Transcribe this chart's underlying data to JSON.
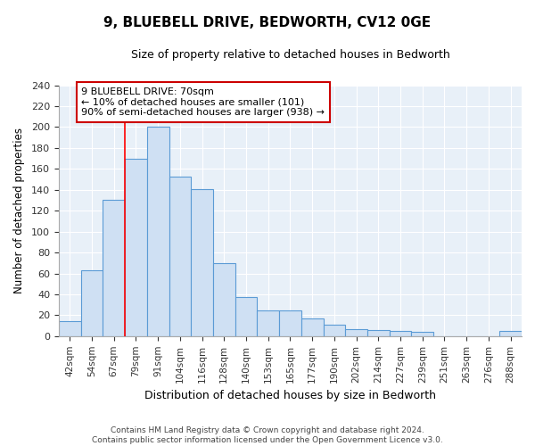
{
  "title": "9, BLUEBELL DRIVE, BEDWORTH, CV12 0GE",
  "subtitle": "Size of property relative to detached houses in Bedworth",
  "xlabel": "Distribution of detached houses by size in Bedworth",
  "ylabel": "Number of detached properties",
  "bar_labels": [
    "42sqm",
    "54sqm",
    "67sqm",
    "79sqm",
    "91sqm",
    "104sqm",
    "116sqm",
    "128sqm",
    "140sqm",
    "153sqm",
    "165sqm",
    "177sqm",
    "190sqm",
    "202sqm",
    "214sqm",
    "227sqm",
    "239sqm",
    "251sqm",
    "263sqm",
    "276sqm",
    "288sqm"
  ],
  "bar_values": [
    14,
    63,
    130,
    170,
    200,
    153,
    141,
    70,
    37,
    25,
    25,
    17,
    11,
    7,
    6,
    5,
    4,
    0,
    0,
    0,
    5
  ],
  "bar_color": "#cfe0f3",
  "bar_edge_color": "#5b9bd5",
  "red_line_x": 2.5,
  "annotation_title": "9 BLUEBELL DRIVE: 70sqm",
  "annotation_line1": "← 10% of detached houses are smaller (101)",
  "annotation_line2": "90% of semi-detached houses are larger (938) →",
  "annotation_box_color": "#ffffff",
  "annotation_box_edge": "#cc0000",
  "ylim": [
    0,
    240
  ],
  "yticks": [
    0,
    20,
    40,
    60,
    80,
    100,
    120,
    140,
    160,
    180,
    200,
    220,
    240
  ],
  "footer1": "Contains HM Land Registry data © Crown copyright and database right 2024.",
  "footer2": "Contains public sector information licensed under the Open Government Licence v3.0.",
  "bg_color": "#ffffff",
  "plot_bg_color": "#e8f0f8",
  "grid_color": "#ffffff"
}
